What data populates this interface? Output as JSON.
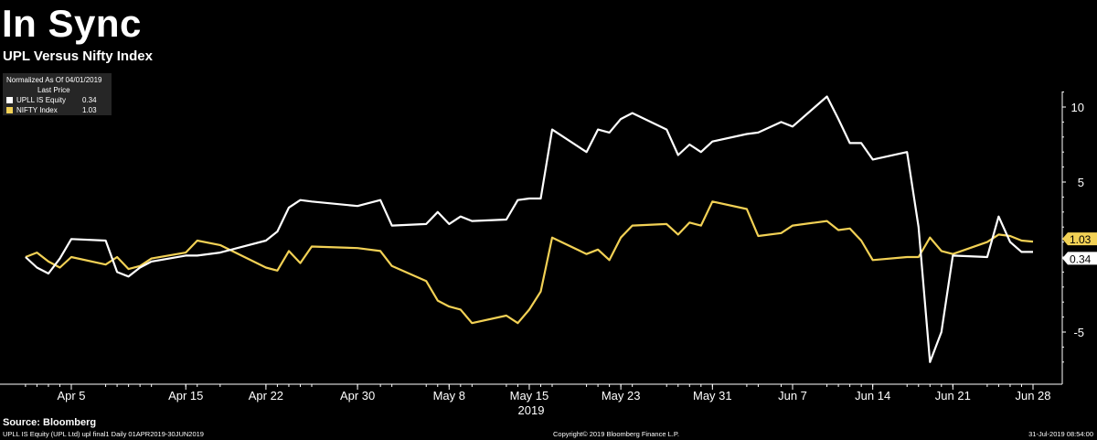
{
  "header": {
    "title": "In Sync",
    "subtitle": "UPL Versus Nifty Index"
  },
  "legend": {
    "heading": "Normalized As Of 04/01/2019",
    "subheading": "Last Price",
    "entries": [
      {
        "name": "UPLL IS Equity",
        "value": "0.34",
        "color": "#ffffff"
      },
      {
        "name": "NIFTY Index",
        "value": "1.03",
        "color": "#f2d155"
      }
    ]
  },
  "footer": {
    "source": "Source: Bloomberg",
    "left_note": "UPLL IS Equity (UPL Ltd) upl final1  Daily 01APR2019-30JUN2019",
    "copyright": "Copyright© 2019 Bloomberg Finance L.P.",
    "timestamp": "31-Jul-2019 08:54:00"
  },
  "chart_data": {
    "type": "line",
    "xlabel": "2019",
    "ylabel": "",
    "ylim": [
      -7,
      12.5
    ],
    "yticks": [
      10,
      5,
      -5
    ],
    "ytick_labels": [
      "10",
      "5",
      "-5"
    ],
    "x": [
      "2019-04-01",
      "2019-04-02",
      "2019-04-03",
      "2019-04-04",
      "2019-04-05",
      "2019-04-08",
      "2019-04-09",
      "2019-04-10",
      "2019-04-11",
      "2019-04-12",
      "2019-04-15",
      "2019-04-16",
      "2019-04-18",
      "2019-04-22",
      "2019-04-23",
      "2019-04-24",
      "2019-04-25",
      "2019-04-26",
      "2019-04-30",
      "2019-05-02",
      "2019-05-03",
      "2019-05-06",
      "2019-05-07",
      "2019-05-08",
      "2019-05-09",
      "2019-05-10",
      "2019-05-13",
      "2019-05-14",
      "2019-05-15",
      "2019-05-16",
      "2019-05-17",
      "2019-05-20",
      "2019-05-21",
      "2019-05-22",
      "2019-05-23",
      "2019-05-24",
      "2019-05-27",
      "2019-05-28",
      "2019-05-29",
      "2019-05-30",
      "2019-05-31",
      "2019-06-03",
      "2019-06-04",
      "2019-06-06",
      "2019-06-07",
      "2019-06-10",
      "2019-06-11",
      "2019-06-12",
      "2019-06-13",
      "2019-06-14",
      "2019-06-17",
      "2019-06-18",
      "2019-06-19",
      "2019-06-20",
      "2019-06-21",
      "2019-06-24",
      "2019-06-25",
      "2019-06-26",
      "2019-06-27",
      "2019-06-28"
    ],
    "xticks": [
      {
        "date": "2019-04-05",
        "label": "Apr 5"
      },
      {
        "date": "2019-04-15",
        "label": "Apr 15"
      },
      {
        "date": "2019-04-22",
        "label": "Apr 22"
      },
      {
        "date": "2019-04-30",
        "label": "Apr 30"
      },
      {
        "date": "2019-05-08",
        "label": "May 8"
      },
      {
        "date": "2019-05-15",
        "label": "May 15"
      },
      {
        "date": "2019-05-23",
        "label": "May 23"
      },
      {
        "date": "2019-05-31",
        "label": "May 31"
      },
      {
        "date": "2019-06-07",
        "label": "Jun 7"
      },
      {
        "date": "2019-06-14",
        "label": "Jun 14"
      },
      {
        "date": "2019-06-21",
        "label": "Jun 21"
      },
      {
        "date": "2019-06-28",
        "label": "Jun 28"
      }
    ],
    "series": [
      {
        "name": "UPLL IS Equity",
        "color": "#ffffff",
        "last_label": "0.34",
        "values": [
          0,
          -0.7,
          -1.1,
          -0.1,
          1.2,
          1.1,
          -1.0,
          -1.3,
          -0.7,
          -0.3,
          0.1,
          0.1,
          0.3,
          1.1,
          1.7,
          3.3,
          3.8,
          3.7,
          3.4,
          3.8,
          2.1,
          2.2,
          3.0,
          2.2,
          2.7,
          2.4,
          2.5,
          3.8,
          3.9,
          3.9,
          8.5,
          7.0,
          8.5,
          8.3,
          9.2,
          9.6,
          8.5,
          6.8,
          7.5,
          7.0,
          7.7,
          8.2,
          8.3,
          9.0,
          8.7,
          10.7,
          9.2,
          7.6,
          7.6,
          6.5,
          7.0,
          2.0,
          -7.0,
          -5.0,
          0.1,
          0.0,
          2.7,
          1.0,
          0.34,
          0.34
        ]
      },
      {
        "name": "NIFTY Index",
        "color": "#f2d155",
        "last_label": "1.03",
        "values": [
          0,
          0.3,
          -0.3,
          -0.7,
          0.0,
          -0.5,
          0.0,
          -0.8,
          -0.6,
          -0.1,
          0.3,
          1.1,
          0.8,
          -0.7,
          -0.9,
          0.4,
          -0.4,
          0.7,
          0.6,
          0.4,
          -0.6,
          -1.6,
          -2.9,
          -3.3,
          -3.5,
          -4.4,
          -3.9,
          -4.4,
          -3.5,
          -2.3,
          1.3,
          0.2,
          0.5,
          -0.2,
          1.3,
          2.1,
          2.2,
          1.5,
          2.3,
          2.1,
          3.7,
          3.2,
          1.4,
          1.6,
          2.1,
          2.4,
          1.8,
          1.9,
          1.1,
          -0.2,
          0.0,
          0.0,
          1.3,
          0.4,
          0.2,
          1.0,
          1.5,
          1.4,
          1.1,
          1.03
        ]
      }
    ]
  }
}
